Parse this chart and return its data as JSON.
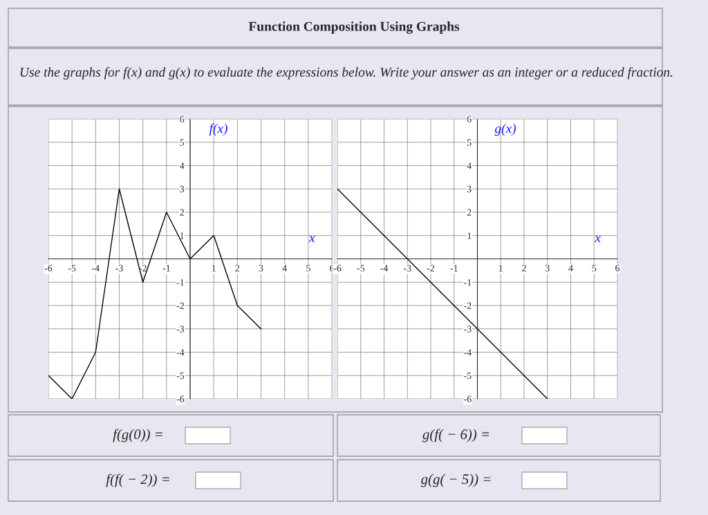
{
  "chart_data": [
    {
      "type": "line",
      "title": "Function Composition Using Graphs",
      "subtitle": "Use the graphs for f(x) and g(x) to evaluate the expressions below. Write your answer as an integer or a reduced fraction.",
      "xlabel": "x",
      "ylabel": "f(x)",
      "series": [
        {
          "color": "#000000",
          "x": [
            -6,
            -5,
            -4,
            -3,
            -2,
            -1,
            0,
            1,
            2,
            3
          ],
          "values": [
            -5,
            -6,
            -4,
            3,
            -1,
            2,
            0,
            1,
            -2,
            -3
          ]
        }
      ],
      "xlim": [
        -6,
        6
      ],
      "ylim": [
        -6,
        6
      ],
      "xticks": [
        -6,
        -5,
        -4,
        -3,
        -2,
        -1,
        {
          "value": 0,
          "label": null
        },
        1,
        2,
        3,
        4,
        5,
        6
      ],
      "yticks": [
        -6,
        -5,
        -4,
        -3,
        -2,
        -1,
        {
          "value": 0,
          "label": null
        },
        1,
        2,
        3,
        4,
        5,
        6
      ],
      "grid": true,
      "line_style": "solid",
      "marker": "none",
      "annotations": [
        "f(g(0)) =",
        "f(f( − 2)) ="
      ]
    },
    {
      "type": "line",
      "xlabel": "x",
      "ylabel": "g(x)",
      "series": [
        {
          "color": "#000000",
          "x": [
            -6,
            3
          ],
          "values": [
            3,
            -6
          ]
        }
      ],
      "xlim": [
        -6,
        6
      ],
      "ylim": [
        -6,
        6
      ],
      "xticks": [
        -6,
        -5,
        -4,
        -3,
        -2,
        -1,
        {
          "value": 0,
          "label": null
        },
        1,
        2,
        3,
        4,
        5,
        6
      ],
      "yticks": [
        -6,
        -5,
        -4,
        -3,
        -2,
        -1,
        {
          "value": 0,
          "label": null
        },
        1,
        2,
        3,
        4,
        5,
        6
      ],
      "grid": true,
      "line_style": "solid",
      "marker": "none",
      "annotations": [
        "g(f( − 6)) =",
        "g(g( − 5)) ="
      ]
    }
  ]
}
